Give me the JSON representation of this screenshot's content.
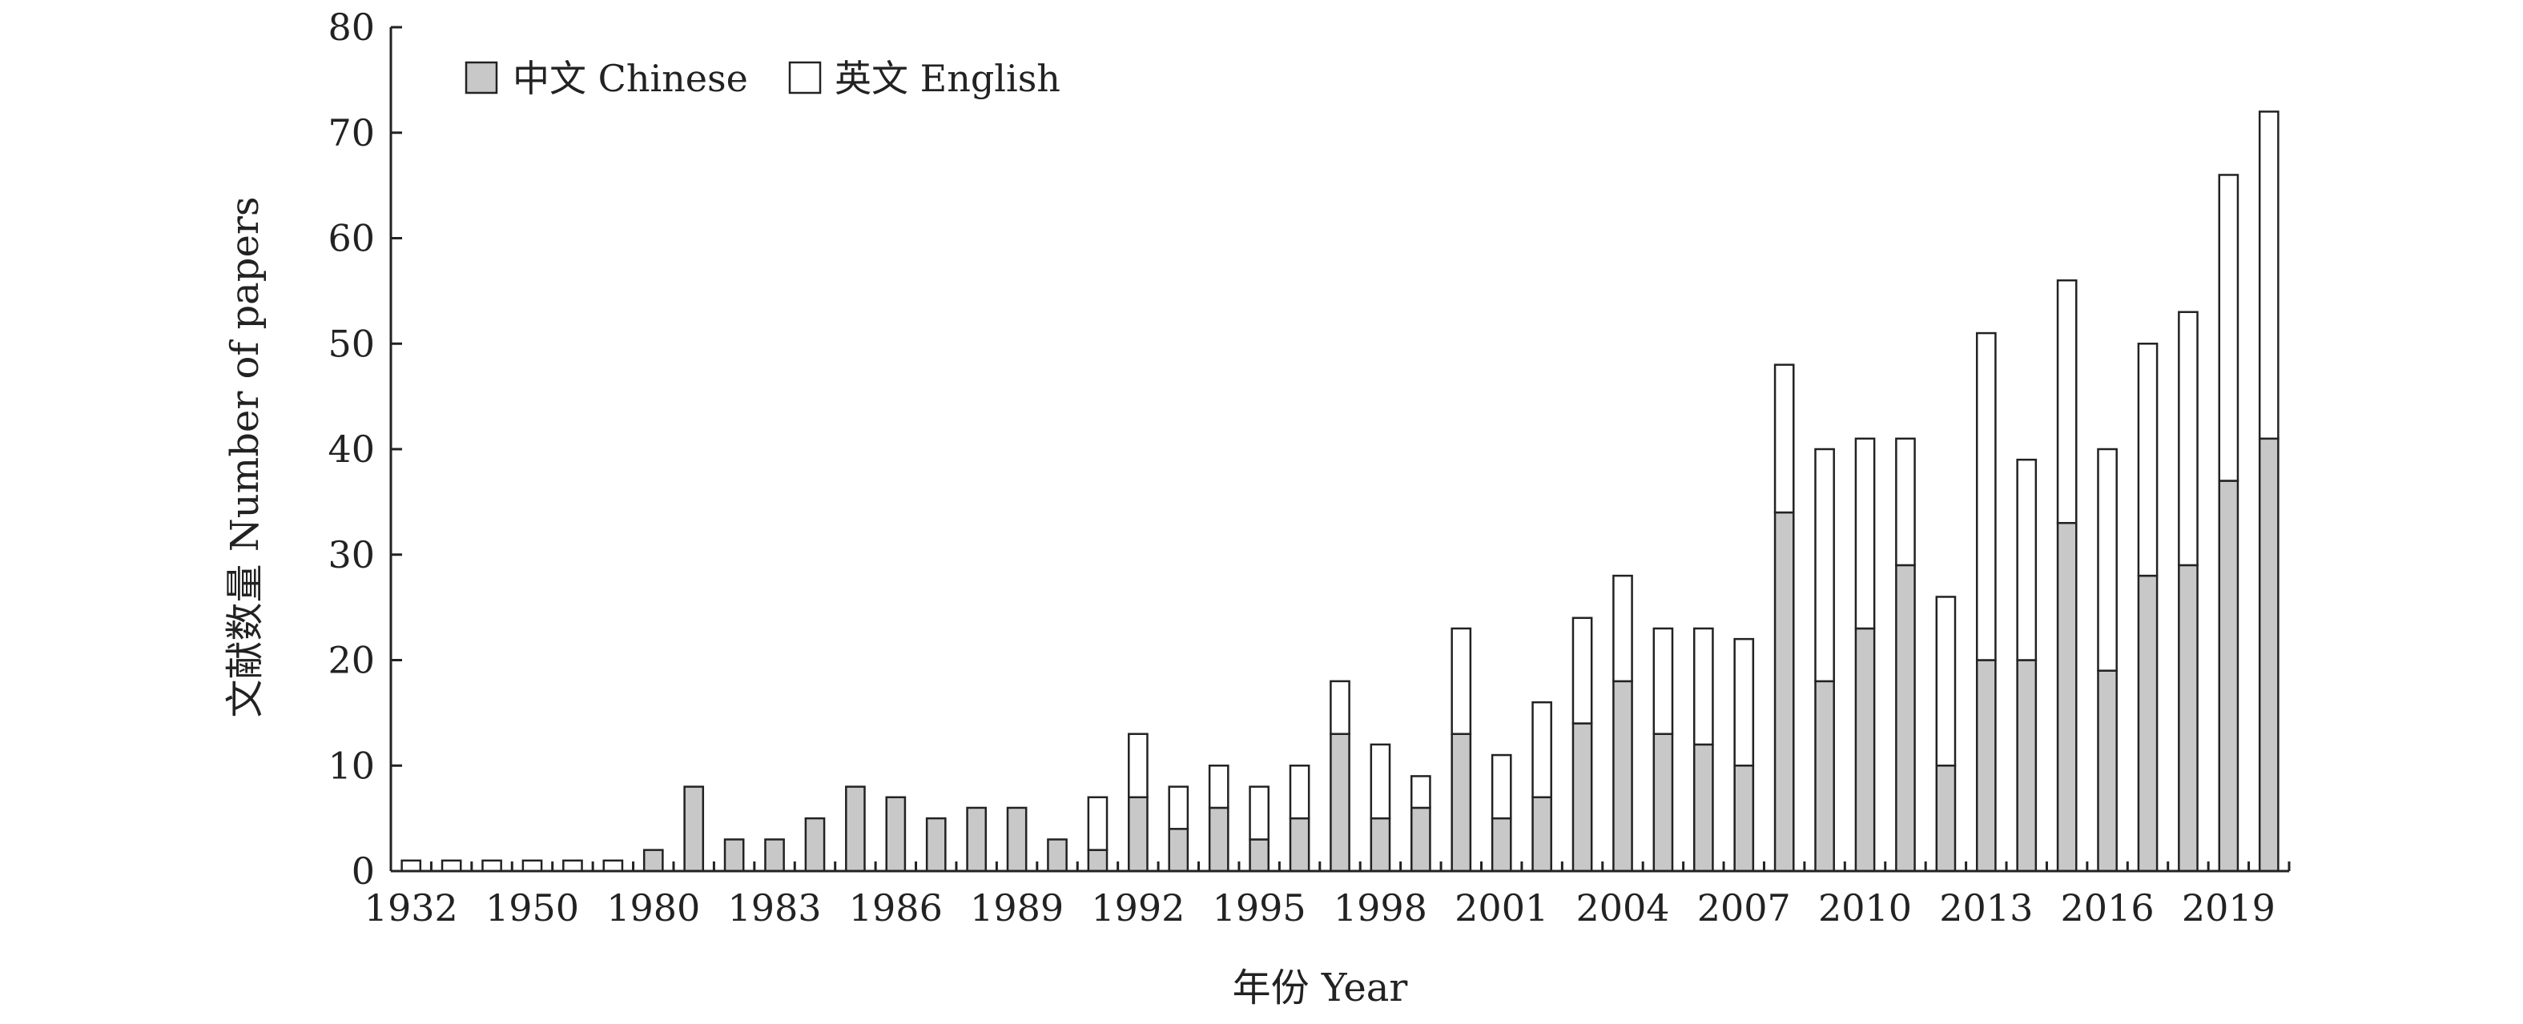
{
  "chart_data": {
    "type": "bar",
    "stacked": true,
    "title": "",
    "xlabel": "年份 Year",
    "ylabel": "文献数量 Number of papers",
    "ylim": [
      0,
      80
    ],
    "yticks": [
      0,
      10,
      20,
      30,
      40,
      50,
      60,
      70,
      80
    ],
    "x_tick_labels": [
      "1932",
      "1950",
      "1980",
      "1983",
      "1986",
      "1989",
      "1992",
      "1995",
      "1998",
      "2001",
      "2004",
      "2007",
      "2010",
      "2013",
      "2016",
      "2019"
    ],
    "x_tick_label_positions": [
      0,
      3,
      6,
      9,
      12,
      15,
      18,
      21,
      24,
      27,
      30,
      33,
      36,
      39,
      42,
      45
    ],
    "grid": false,
    "legend_position": "top-left",
    "colors": {
      "chinese": "#c8c8c8",
      "english": "#ffffff",
      "stroke": "#222222"
    },
    "series": [
      {
        "name": "中文 Chinese",
        "values": [
          0,
          0,
          0,
          0,
          0,
          0,
          2,
          8,
          3,
          3,
          5,
          8,
          7,
          5,
          6,
          6,
          3,
          2,
          7,
          4,
          6,
          3,
          5,
          13,
          5,
          6,
          13,
          5,
          7,
          14,
          18,
          13,
          12,
          10,
          34,
          18,
          23,
          29,
          10,
          20,
          20,
          33,
          19,
          28,
          29,
          37,
          41
        ]
      },
      {
        "name": "英文 English",
        "values": [
          1,
          1,
          1,
          1,
          1,
          1,
          0,
          0,
          0,
          0,
          0,
          0,
          0,
          0,
          0,
          0,
          0,
          5,
          6,
          4,
          4,
          5,
          5,
          5,
          7,
          3,
          10,
          6,
          9,
          10,
          10,
          10,
          11,
          12,
          14,
          22,
          18,
          12,
          16,
          31,
          19,
          23,
          21,
          22,
          24,
          29,
          31
        ]
      }
    ]
  }
}
